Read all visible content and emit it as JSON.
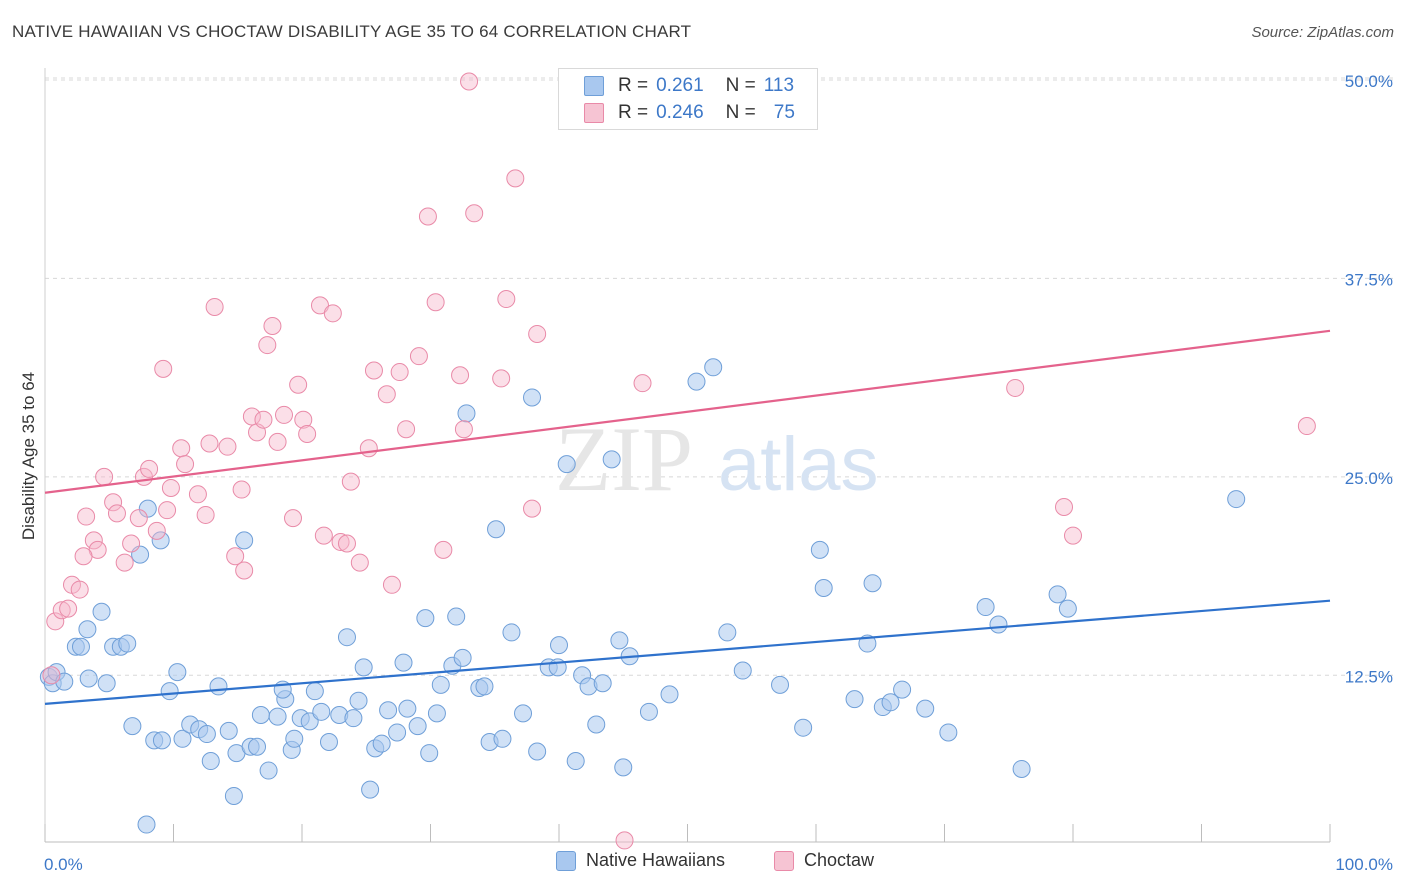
{
  "title": "NATIVE HAWAIIAN VS CHOCTAW DISABILITY AGE 35 TO 64 CORRELATION CHART",
  "source": "Source: ZipAtlas.com",
  "watermark": {
    "zip": "ZIP",
    "atlas": "atlas"
  },
  "legend_box": {
    "rows": [
      {
        "r_label": "R =",
        "r_value": "0.261",
        "n_label": "N =",
        "n_value": "113"
      },
      {
        "r_label": "R =",
        "r_value": "0.246",
        "n_label": "N =",
        "n_value": "75"
      }
    ]
  },
  "bottom_legend": [
    "Native Hawaiians",
    "Choctaw"
  ],
  "colors": {
    "blue_fill": "#a9c8ef",
    "blue_stroke": "#6f9fd8",
    "blue_line": "#2f72cc",
    "pink_fill": "#f6b9cb",
    "pink_stroke": "#e98aa8",
    "pink_line": "#e4628c",
    "tick_label": "#3d78c8",
    "grid": "#d8d8d8"
  },
  "chart_data": {
    "type": "scatter",
    "title": "NATIVE HAWAIIAN VS CHOCTAW DISABILITY AGE 35 TO 64 CORRELATION CHART",
    "xlabel": "",
    "ylabel": "Disability Age 35 to 64",
    "xlim": [
      0,
      100
    ],
    "ylim": [
      2.0,
      50.5
    ],
    "x_tick_labels": [
      "0.0%",
      "100.0%"
    ],
    "y_ticks": [
      12.5,
      25.0,
      37.5,
      50.0
    ],
    "y_tick_labels": [
      "12.5%",
      "25.0%",
      "37.5%",
      "50.0%"
    ],
    "grid": true,
    "series": [
      {
        "name": "Native Hawaiians",
        "r": 0.261,
        "n": 113,
        "trend": {
          "x": [
            0,
            100
          ],
          "y": [
            10.7,
            17.2
          ]
        },
        "points": [
          [
            0.3,
            12.4
          ],
          [
            0.6,
            12.0
          ],
          [
            0.9,
            12.7
          ],
          [
            1.5,
            12.1
          ],
          [
            2.4,
            14.3
          ],
          [
            2.8,
            14.3
          ],
          [
            3.3,
            15.4
          ],
          [
            3.4,
            12.3
          ],
          [
            4.4,
            16.5
          ],
          [
            4.8,
            12.0
          ],
          [
            5.3,
            14.3
          ],
          [
            5.9,
            14.3
          ],
          [
            6.4,
            14.5
          ],
          [
            6.8,
            9.3
          ],
          [
            7.4,
            20.1
          ],
          [
            7.9,
            3.1
          ],
          [
            8.5,
            8.4
          ],
          [
            9.1,
            8.4
          ],
          [
            9.0,
            21.0
          ],
          [
            9.7,
            11.5
          ],
          [
            10.3,
            12.7
          ],
          [
            10.7,
            8.5
          ],
          [
            11.3,
            9.4
          ],
          [
            12.0,
            9.1
          ],
          [
            12.6,
            8.8
          ],
          [
            12.9,
            7.1
          ],
          [
            13.5,
            11.8
          ],
          [
            14.3,
            9.0
          ],
          [
            14.7,
            4.9
          ],
          [
            14.9,
            7.6
          ],
          [
            15.5,
            21.0
          ],
          [
            16.0,
            8.0
          ],
          [
            16.5,
            8.0
          ],
          [
            16.8,
            10.0
          ],
          [
            17.4,
            6.5
          ],
          [
            18.1,
            9.9
          ],
          [
            18.7,
            11.0
          ],
          [
            18.5,
            11.6
          ],
          [
            19.2,
            7.8
          ],
          [
            19.4,
            8.5
          ],
          [
            19.9,
            9.8
          ],
          [
            20.6,
            9.6
          ],
          [
            21.0,
            11.5
          ],
          [
            21.5,
            10.2
          ],
          [
            22.1,
            8.3
          ],
          [
            22.9,
            10.0
          ],
          [
            23.5,
            14.9
          ],
          [
            24.0,
            9.8
          ],
          [
            24.4,
            10.9
          ],
          [
            24.8,
            13.0
          ],
          [
            25.3,
            5.3
          ],
          [
            25.7,
            7.9
          ],
          [
            26.2,
            8.2
          ],
          [
            26.7,
            10.3
          ],
          [
            27.4,
            8.9
          ],
          [
            27.9,
            13.3
          ],
          [
            28.2,
            10.4
          ],
          [
            29.0,
            9.3
          ],
          [
            29.6,
            16.1
          ],
          [
            29.9,
            7.6
          ],
          [
            30.5,
            10.1
          ],
          [
            30.8,
            11.9
          ],
          [
            31.7,
            13.1
          ],
          [
            32.0,
            16.2
          ],
          [
            32.5,
            13.6
          ],
          [
            32.8,
            29.0
          ],
          [
            33.8,
            11.7
          ],
          [
            34.2,
            11.8
          ],
          [
            34.6,
            8.3
          ],
          [
            35.1,
            21.7
          ],
          [
            35.6,
            8.5
          ],
          [
            36.3,
            15.2
          ],
          [
            37.2,
            10.1
          ],
          [
            37.9,
            30.0
          ],
          [
            38.3,
            7.7
          ],
          [
            39.2,
            13.0
          ],
          [
            39.9,
            13.0
          ],
          [
            40.0,
            14.4
          ],
          [
            40.6,
            25.8
          ],
          [
            41.3,
            7.1
          ],
          [
            41.8,
            12.5
          ],
          [
            42.3,
            11.8
          ],
          [
            42.9,
            9.4
          ],
          [
            43.4,
            12.0
          ],
          [
            44.1,
            26.1
          ],
          [
            44.7,
            14.7
          ],
          [
            45.0,
            6.7
          ],
          [
            45.5,
            13.7
          ],
          [
            47.0,
            10.2
          ],
          [
            48.6,
            11.3
          ],
          [
            50.7,
            31.0
          ],
          [
            52.0,
            31.9
          ],
          [
            53.1,
            15.2
          ],
          [
            54.3,
            12.8
          ],
          [
            57.2,
            11.9
          ],
          [
            59.0,
            9.2
          ],
          [
            60.3,
            20.4
          ],
          [
            60.6,
            18.0
          ],
          [
            63.0,
            11.0
          ],
          [
            64.0,
            14.5
          ],
          [
            64.4,
            18.3
          ],
          [
            65.2,
            10.5
          ],
          [
            65.8,
            10.8
          ],
          [
            66.7,
            11.6
          ],
          [
            68.5,
            10.4
          ],
          [
            70.3,
            8.9
          ],
          [
            73.2,
            16.8
          ],
          [
            74.2,
            15.7
          ],
          [
            76.0,
            6.6
          ],
          [
            78.8,
            17.6
          ],
          [
            79.6,
            16.7
          ],
          [
            92.7,
            23.6
          ],
          [
            8.0,
            23.0
          ]
        ]
      },
      {
        "name": "Choctaw",
        "r": 0.246,
        "n": 75,
        "trend": {
          "x": [
            0,
            100
          ],
          "y": [
            24.0,
            34.2
          ]
        },
        "points": [
          [
            0.8,
            15.9
          ],
          [
            1.3,
            16.6
          ],
          [
            1.8,
            16.7
          ],
          [
            2.1,
            18.2
          ],
          [
            2.7,
            17.9
          ],
          [
            3.2,
            22.5
          ],
          [
            3.8,
            21.0
          ],
          [
            4.1,
            20.4
          ],
          [
            4.6,
            25.0
          ],
          [
            5.3,
            23.4
          ],
          [
            5.6,
            22.7
          ],
          [
            6.2,
            19.6
          ],
          [
            6.7,
            20.8
          ],
          [
            7.3,
            22.4
          ],
          [
            7.7,
            25.0
          ],
          [
            8.1,
            25.5
          ],
          [
            8.7,
            21.6
          ],
          [
            9.2,
            31.8
          ],
          [
            9.5,
            22.9
          ],
          [
            9.8,
            24.3
          ],
          [
            10.6,
            26.8
          ],
          [
            10.9,
            25.8
          ],
          [
            11.9,
            23.9
          ],
          [
            12.5,
            22.6
          ],
          [
            12.8,
            27.1
          ],
          [
            13.2,
            35.7
          ],
          [
            14.2,
            26.9
          ],
          [
            14.8,
            20.0
          ],
          [
            15.3,
            24.2
          ],
          [
            15.5,
            19.1
          ],
          [
            16.1,
            28.8
          ],
          [
            16.5,
            27.8
          ],
          [
            17.0,
            28.6
          ],
          [
            17.3,
            33.3
          ],
          [
            17.7,
            34.5
          ],
          [
            18.1,
            27.2
          ],
          [
            18.6,
            28.9
          ],
          [
            19.3,
            22.4
          ],
          [
            19.7,
            30.8
          ],
          [
            20.1,
            28.6
          ],
          [
            20.4,
            27.7
          ],
          [
            21.4,
            35.8
          ],
          [
            21.7,
            21.3
          ],
          [
            22.4,
            35.3
          ],
          [
            23.0,
            20.9
          ],
          [
            23.5,
            20.8
          ],
          [
            23.8,
            24.7
          ],
          [
            24.5,
            19.6
          ],
          [
            25.2,
            26.8
          ],
          [
            25.6,
            31.7
          ],
          [
            26.6,
            30.2
          ],
          [
            27.0,
            18.2
          ],
          [
            27.6,
            31.6
          ],
          [
            28.1,
            28.0
          ],
          [
            29.1,
            32.6
          ],
          [
            29.8,
            41.4
          ],
          [
            30.4,
            36.0
          ],
          [
            31.0,
            20.4
          ],
          [
            32.3,
            31.4
          ],
          [
            32.6,
            28.0
          ],
          [
            33.0,
            49.9
          ],
          [
            33.4,
            41.6
          ],
          [
            35.5,
            31.2
          ],
          [
            35.9,
            36.2
          ],
          [
            36.6,
            43.8
          ],
          [
            37.9,
            23.0
          ],
          [
            38.3,
            34.0
          ],
          [
            45.1,
            2.1
          ],
          [
            46.5,
            30.9
          ],
          [
            75.5,
            30.6
          ],
          [
            79.3,
            23.1
          ],
          [
            80.0,
            21.3
          ],
          [
            98.2,
            28.2
          ],
          [
            0.5,
            12.5
          ],
          [
            3.0,
            20.0
          ]
        ]
      }
    ]
  }
}
